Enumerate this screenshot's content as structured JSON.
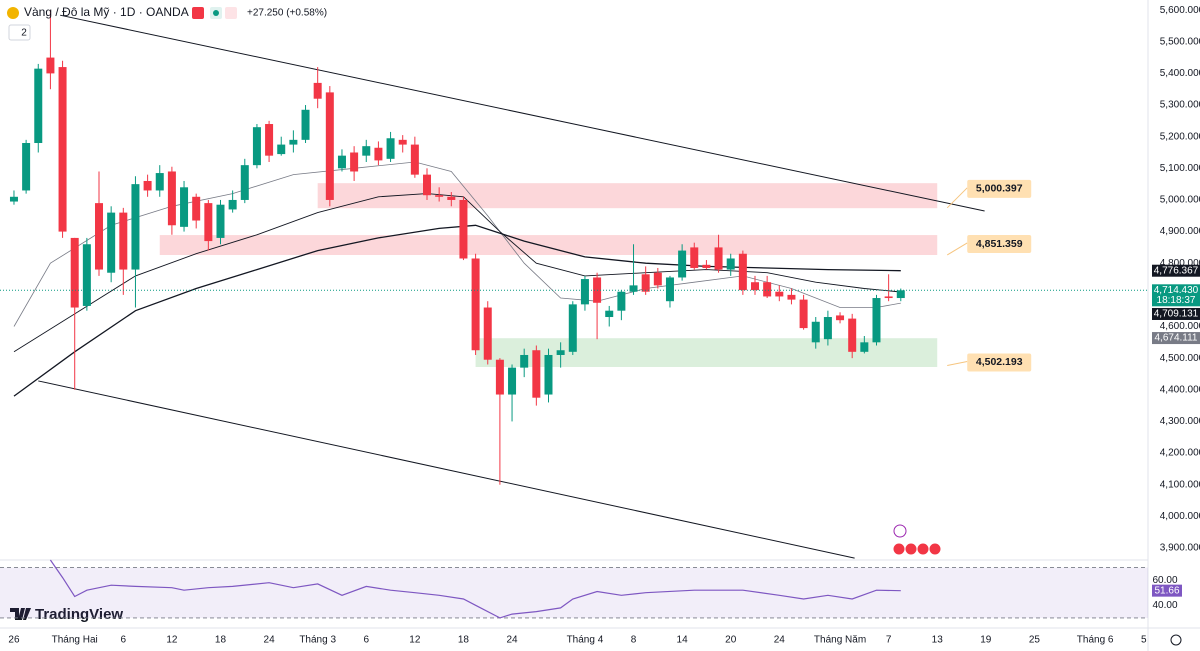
{
  "chart_data": {
    "type": "candlestick",
    "title": "Vàng / Đô la Mỹ · 1D · OANDA",
    "change": "+27.250 (+0.58%)",
    "indicator_count": 2,
    "brand": "TradingView",
    "up_color": "#089981",
    "down_color": "#f23645",
    "grid": false,
    "x": [
      0,
      1,
      2,
      3,
      4,
      5,
      6,
      7,
      8,
      9,
      10,
      11,
      12,
      13,
      14,
      15,
      16,
      17,
      18,
      19,
      20,
      21,
      22,
      23,
      24,
      25,
      26,
      27,
      28,
      29,
      30,
      31,
      32,
      33,
      34,
      35,
      36,
      37,
      38,
      39,
      40,
      41,
      42,
      43,
      44,
      45,
      46,
      47,
      48,
      49,
      50,
      51,
      52,
      53,
      54,
      55,
      56,
      57,
      58,
      59,
      60,
      61,
      62,
      63,
      64,
      65,
      66,
      67,
      68,
      69,
      70,
      71,
      72,
      73
    ],
    "open": [
      4995,
      5030,
      5180,
      5450,
      5420,
      4880,
      4665,
      4990,
      4770,
      4960,
      4780,
      5060,
      5030,
      5090,
      4915,
      5010,
      4990,
      4880,
      4970,
      5000,
      5110,
      5240,
      5145,
      5175,
      5190,
      5370,
      5340,
      5100,
      5150,
      5140,
      5165,
      5130,
      5190,
      5175,
      5080,
      5015,
      5010,
      5000,
      4815,
      4660,
      4495,
      4385,
      4470,
      4525,
      4385,
      4510,
      4520,
      4670,
      4755,
      4630,
      4650,
      4710,
      4765,
      4770,
      4680,
      4755,
      4850,
      4795,
      4850,
      4780,
      4830,
      4740,
      4740,
      4710,
      4700,
      4685,
      4550,
      4560,
      4635,
      4625,
      4520,
      4550,
      4695,
      4690
    ],
    "high": [
      5030,
      5190,
      5430,
      5600,
      5440,
      4880,
      4880,
      5090,
      4980,
      4975,
      5075,
      5080,
      5110,
      5105,
      5060,
      5020,
      5000,
      5000,
      5030,
      5130,
      5240,
      5250,
      5200,
      5220,
      5300,
      5420,
      5360,
      5160,
      5170,
      5190,
      5185,
      5215,
      5205,
      5200,
      5100,
      5040,
      5025,
      5010,
      4830,
      4680,
      4500,
      4480,
      4530,
      4540,
      4530,
      4550,
      4680,
      4760,
      4770,
      4665,
      4715,
      4860,
      4790,
      4785,
      4760,
      4860,
      4865,
      4810,
      4890,
      4830,
      4840,
      4760,
      4760,
      4730,
      4720,
      4700,
      4630,
      4650,
      4645,
      4640,
      4570,
      4700,
      4765,
      4720
    ],
    "low": [
      4985,
      5020,
      5150,
      5350,
      4880,
      4400,
      4650,
      4760,
      4740,
      4700,
      4660,
      5010,
      5010,
      4890,
      4900,
      4910,
      4840,
      4860,
      4960,
      4990,
      5100,
      5120,
      5140,
      5150,
      5180,
      5290,
      4980,
      5090,
      5060,
      5120,
      5110,
      5120,
      5150,
      5070,
      5000,
      4995,
      4980,
      4810,
      4510,
      4480,
      4100,
      4300,
      4440,
      4350,
      4360,
      4470,
      4510,
      4650,
      4560,
      4600,
      4620,
      4700,
      4700,
      4720,
      4660,
      4745,
      4780,
      4780,
      4770,
      4760,
      4700,
      4700,
      4690,
      4680,
      4670,
      4590,
      4530,
      4540,
      4610,
      4500,
      4515,
      4540,
      4680,
      4680
    ],
    "close": [
      5010,
      5180,
      5415,
      5400,
      4900,
      4660,
      4860,
      4780,
      4960,
      4780,
      5050,
      5030,
      5085,
      4920,
      5040,
      4935,
      4870,
      4985,
      5000,
      5110,
      5230,
      5140,
      5175,
      5190,
      5285,
      5320,
      5000,
      5140,
      5090,
      5170,
      5125,
      5195,
      5175,
      5080,
      5015,
      5010,
      5000,
      4815,
      4525,
      4495,
      4385,
      4470,
      4510,
      4375,
      4510,
      4525,
      4670,
      4750,
      4675,
      4650,
      4710,
      4730,
      4710,
      4730,
      4755,
      4840,
      4785,
      4785,
      4780,
      4815,
      4715,
      4715,
      4695,
      4695,
      4685,
      4595,
      4615,
      4630,
      4620,
      4520,
      4550,
      4690,
      4690,
      4714.43
    ],
    "xlim": [
      -1.15,
      93.35
    ],
    "xticks": [
      {
        "value": 0,
        "label": "26"
      },
      {
        "value": 5,
        "label": "Tháng Hai"
      },
      {
        "value": 9,
        "label": "6"
      },
      {
        "value": 13,
        "label": "12"
      },
      {
        "value": 17,
        "label": "18"
      },
      {
        "value": 21,
        "label": "24"
      },
      {
        "value": 25,
        "label": "Tháng 3"
      },
      {
        "value": 29,
        "label": "6"
      },
      {
        "value": 33,
        "label": "12"
      },
      {
        "value": 37,
        "label": "18"
      },
      {
        "value": 41,
        "label": "24"
      },
      {
        "value": 47,
        "label": "Tháng 4"
      },
      {
        "value": 51,
        "label": "8"
      },
      {
        "value": 55,
        "label": "14"
      },
      {
        "value": 59,
        "label": "20"
      },
      {
        "value": 63,
        "label": "24"
      },
      {
        "value": 68,
        "label": "Tháng Năm"
      },
      {
        "value": 72,
        "label": "7"
      },
      {
        "value": 76,
        "label": "13"
      },
      {
        "value": 80,
        "label": "19"
      },
      {
        "value": 84,
        "label": "25"
      },
      {
        "value": 89,
        "label": "Tháng 6"
      },
      {
        "value": 93,
        "label": "5"
      }
    ],
    "ylim": [
      3862,
      5632
    ],
    "yticks": [
      {
        "value": 5600,
        "label": "5,600.000"
      },
      {
        "value": 5500,
        "label": "5,500.000"
      },
      {
        "value": 5400,
        "label": "5,400.000"
      },
      {
        "value": 5300,
        "label": "5,300.000"
      },
      {
        "value": 5200,
        "label": "5,200.000"
      },
      {
        "value": 5100,
        "label": "5,100.000"
      },
      {
        "value": 5000,
        "label": "5,000.000"
      },
      {
        "value": 4900,
        "label": "4,900.000"
      },
      {
        "value": 4800,
        "label": "4,800.000"
      },
      {
        "value": 4700,
        "label": "4,700.000"
      },
      {
        "value": 4600,
        "label": "4,600.000"
      },
      {
        "value": 4500,
        "label": "4,500.000"
      },
      {
        "value": 4400,
        "label": "4,400.000"
      },
      {
        "value": 4300,
        "label": "4,300.000"
      },
      {
        "value": 4200,
        "label": "4,200.000"
      },
      {
        "value": 4100,
        "label": "4,100.000"
      },
      {
        "value": 4000,
        "label": "4,000.000"
      },
      {
        "value": 3900,
        "label": "3,900.000"
      }
    ],
    "last_price": {
      "value": 4714.43,
      "label": "4,714.430",
      "countdown": "18:18:37",
      "color": "#089981"
    },
    "moving_averages": [
      {
        "color": "#787b86",
        "width": 0.8,
        "badge_color": "#787b86",
        "last_label": "4,674.111",
        "x": [
          0,
          3,
          8,
          13,
          18,
          23,
          28,
          33,
          36,
          39,
          42,
          45,
          48,
          52,
          56,
          60,
          64,
          68,
          71,
          73
        ],
        "values": [
          4600,
          4800,
          4920,
          4980,
          5020,
          5080,
          5100,
          5120,
          5090,
          4950,
          4800,
          4690,
          4680,
          4720,
          4740,
          4760,
          4720,
          4660,
          4660,
          4674.111
        ]
      },
      {
        "color": "#131722",
        "width": 0.9,
        "badge_color": "#131722",
        "last_label": "4,709.131",
        "x": [
          0,
          5,
          10,
          15,
          20,
          25,
          30,
          34,
          37,
          40,
          43,
          47,
          52,
          57,
          62,
          66,
          70,
          73
        ],
        "values": [
          4520,
          4640,
          4760,
          4830,
          4890,
          4960,
          5010,
          5020,
          5010,
          4900,
          4800,
          4760,
          4770,
          4780,
          4770,
          4740,
          4720,
          4709.131
        ]
      },
      {
        "color": "#131722",
        "width": 1.3,
        "badge_color": "#131722",
        "last_label": "4,776.367",
        "x": [
          0,
          5,
          10,
          15,
          20,
          25,
          30,
          35,
          38,
          42,
          47,
          52,
          57,
          62,
          67,
          73
        ],
        "values": [
          4380,
          4520,
          4650,
          4720,
          4780,
          4840,
          4880,
          4910,
          4920,
          4870,
          4820,
          4800,
          4790,
          4785,
          4780,
          4776.367
        ]
      }
    ],
    "zones": [
      {
        "color": "#f23645",
        "x": [
          25,
          76
        ],
        "low": 4974,
        "high": 5053,
        "level": {
          "value": 5000.397,
          "label": "5,000.397"
        }
      },
      {
        "color": "#f23645",
        "x": [
          12,
          76
        ],
        "low": 4826,
        "high": 4889,
        "level": {
          "value": 4851.359,
          "label": "4,851.359"
        }
      },
      {
        "color": "#4caf50",
        "x": [
          38,
          76
        ],
        "low": 4472,
        "high": 4563,
        "level": {
          "value": 4502.193,
          "label": "4,502.193"
        }
      }
    ],
    "trendlines": [
      {
        "x": [
          3.8,
          79.9
        ],
        "values": [
          5584,
          4965
        ]
      },
      {
        "x": [
          2,
          69.2
        ],
        "values": [
          4428,
          3868
        ]
      }
    ],
    "rsi": {
      "color": "#7e57c2",
      "ylim": [
        22,
        76
      ],
      "yticks": [
        {
          "value": 60,
          "label": "60.00"
        },
        {
          "value": 40,
          "label": "40.00"
        }
      ],
      "band": [
        30,
        70
      ],
      "x": [
        3,
        4,
        5,
        6,
        8,
        10,
        13,
        14,
        16,
        18,
        21,
        23,
        25,
        27,
        29,
        31,
        33,
        35,
        37,
        38,
        40,
        41,
        43,
        45,
        46,
        48,
        50,
        52,
        56,
        60,
        63,
        65,
        67,
        69,
        71,
        73
      ],
      "values": [
        76,
        62,
        47,
        52,
        56,
        55,
        54,
        52,
        54,
        55,
        58,
        54,
        57,
        48,
        55,
        52,
        50,
        48,
        45,
        40,
        30,
        33,
        35,
        38,
        45,
        51,
        48,
        50,
        52,
        52,
        48,
        45,
        48,
        45,
        52,
        51.66
      ],
      "last_label": "51.66"
    }
  }
}
